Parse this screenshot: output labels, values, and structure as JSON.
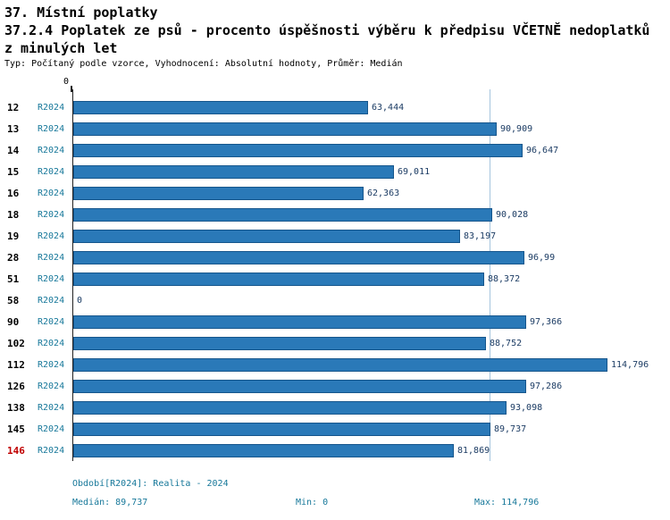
{
  "header": {
    "title": "37. Místní poplatky",
    "subtitle": "37.2.4 Poplatek ze psů - procento úspěšnosti výběru k předpisu VČETNĚ nedoplatků z minulých let",
    "meta": "Typ: Počítaný podle vzorce, Vyhodnocení: Absolutní hodnoty, Průměr: Medián"
  },
  "chart_data": {
    "type": "bar",
    "orientation": "horizontal",
    "title": "37.2.4 Poplatek ze psů - procento úspěšnosti výběru k předpisu VČETNĚ nedoplatků z minulých let",
    "series_label": "R2024",
    "axis_origin_label": "0",
    "categories": [
      "12",
      "13",
      "14",
      "15",
      "16",
      "18",
      "19",
      "28",
      "51",
      "58",
      "90",
      "102",
      "112",
      "126",
      "138",
      "145",
      "146"
    ],
    "values": [
      63.444,
      90.909,
      96.647,
      69.011,
      62.363,
      90.028,
      83.197,
      96.99,
      88.372,
      0,
      97.366,
      88.752,
      114.796,
      97.286,
      93.098,
      89.737,
      81.869
    ],
    "value_labels": [
      "63,444",
      "90,909",
      "96,647",
      "69,011",
      "62,363",
      "90,028",
      "83,197",
      "96,99",
      "88,372",
      "0",
      "97,366",
      "88,752",
      "114,796",
      "97,286",
      "93,098",
      "89,737",
      "81,869"
    ],
    "xlim": [
      0,
      114.796
    ],
    "xmax": 114.796,
    "median": 89.737,
    "min": 0,
    "max": 114.796,
    "highlight_category": "146",
    "grid": "median-line-only",
    "legend": "none"
  },
  "footer": {
    "period": "Období[R2024]: Realita - 2024",
    "median": "Medián: 89,737",
    "min": "Min: 0",
    "max": "Max: 114,796"
  },
  "colors": {
    "bar": "#2a79b8",
    "bar_border": "#16568c",
    "accent": "#17789a",
    "value_text": "#1c3c64",
    "highlight": "#c00000",
    "median_line": "#a6c5de",
    "axis": "#222222"
  }
}
